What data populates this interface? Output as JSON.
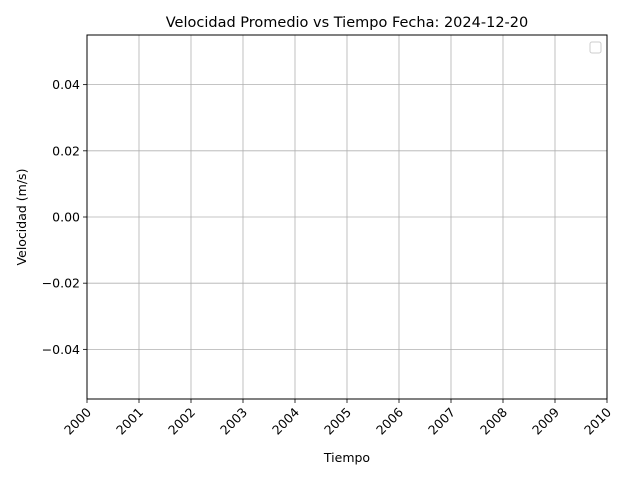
{
  "chart_data": {
    "type": "line",
    "title": "Velocidad Promedio vs Tiempo Fecha: 2024-12-20",
    "xlabel": "Tiempo",
    "ylabel": "Velocidad (m/s)",
    "x_ticks": [
      "2000",
      "2001",
      "2002",
      "2003",
      "2004",
      "2005",
      "2006",
      "2007",
      "2008",
      "2009",
      "2010"
    ],
    "xlim": [
      "2000",
      "2010"
    ],
    "y_ticks": [
      0.04,
      0.02,
      0.0,
      -0.02,
      -0.04
    ],
    "y_tick_labels": [
      "0.04",
      "0.02",
      "0.00",
      "−0.02",
      "−0.04"
    ],
    "ylim": [
      -0.055,
      0.055
    ],
    "series": [],
    "grid": true,
    "legend": {
      "placement": "upper-right",
      "entries": []
    }
  }
}
